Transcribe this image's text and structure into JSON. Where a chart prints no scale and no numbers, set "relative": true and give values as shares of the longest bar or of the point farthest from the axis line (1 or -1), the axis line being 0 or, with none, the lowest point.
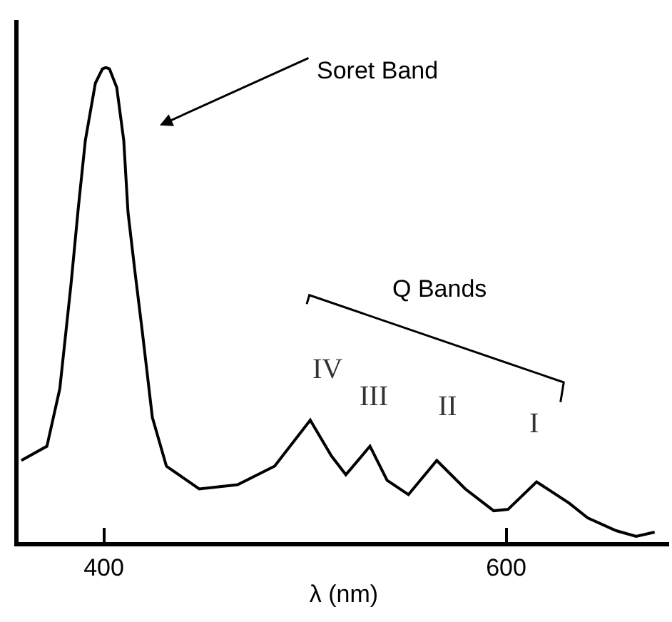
{
  "chart_data": {
    "type": "line",
    "relative": true,
    "xlabel": "λ (nm)",
    "xlim": [
      357.6,
      681
    ],
    "xticks": [
      400,
      600
    ],
    "marker": "none",
    "line_style": "solid",
    "x": [
      359.0,
      371.7,
      378.1,
      383.7,
      387.3,
      390.8,
      395.8,
      399.3,
      401.0,
      402.8,
      406.4,
      409.9,
      412.0,
      415.6,
      419.1,
      424.1,
      431.1,
      447.4,
      466.5,
      484.9,
      502.6,
      513.2,
      520.3,
      532.3,
      540.8,
      551.4,
      565.5,
      579.7,
      593.8,
      600.9,
      615.1,
      631.3,
      640.5,
      654.7,
      664.6,
      673.8
    ],
    "series": [
      {
        "color": "#000000",
        "values": [
          0.172,
          0.202,
          0.323,
          0.544,
          0.704,
          0.846,
          0.967,
          0.997,
          1.0,
          0.997,
          0.958,
          0.846,
          0.695,
          0.565,
          0.444,
          0.263,
          0.16,
          0.112,
          0.121,
          0.16,
          0.257,
          0.181,
          0.142,
          0.202,
          0.13,
          0.1,
          0.172,
          0.112,
          0.066,
          0.069,
          0.127,
          0.082,
          0.051,
          0.024,
          0.012,
          0.021
        ]
      }
    ],
    "annotations": [
      "Soret Band",
      "Q Bands",
      "IV",
      "III",
      "II",
      "I"
    ]
  }
}
